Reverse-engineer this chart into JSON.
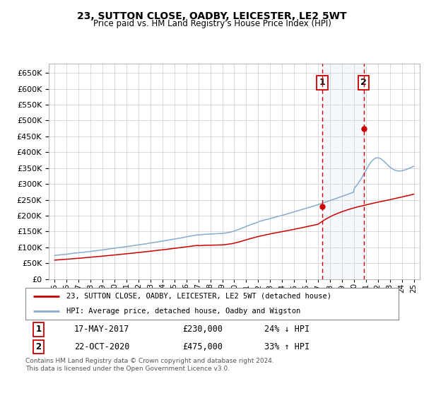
{
  "title": "23, SUTTON CLOSE, OADBY, LEICESTER, LE2 5WT",
  "subtitle": "Price paid vs. HM Land Registry's House Price Index (HPI)",
  "legend_line1": "23, SUTTON CLOSE, OADBY, LEICESTER, LE2 5WT (detached house)",
  "legend_line2": "HPI: Average price, detached house, Oadby and Wigston",
  "purchase1_date": "17-MAY-2017",
  "purchase1_price": 230000,
  "purchase1_pct": "24% ↓ HPI",
  "purchase2_date": "22-OCT-2020",
  "purchase2_price": 475000,
  "purchase2_pct": "33% ↑ HPI",
  "footer": "Contains HM Land Registry data © Crown copyright and database right 2024.\nThis data is licensed under the Open Government Licence v3.0.",
  "ylim": [
    0,
    680000
  ],
  "yticks": [
    0,
    50000,
    100000,
    150000,
    200000,
    250000,
    300000,
    350000,
    400000,
    450000,
    500000,
    550000,
    600000,
    650000
  ],
  "purchase1_x": 2017.37,
  "purchase2_x": 2020.81,
  "xlim_left": 1994.5,
  "xlim_right": 2025.5,
  "bg_color": "#ffffff",
  "grid_color": "#cccccc",
  "red_color": "#cc0000",
  "blue_color": "#88aacc",
  "title_fontsize": 10,
  "subtitle_fontsize": 8.5,
  "tick_fontsize": 7.5,
  "ytick_fontsize": 8
}
